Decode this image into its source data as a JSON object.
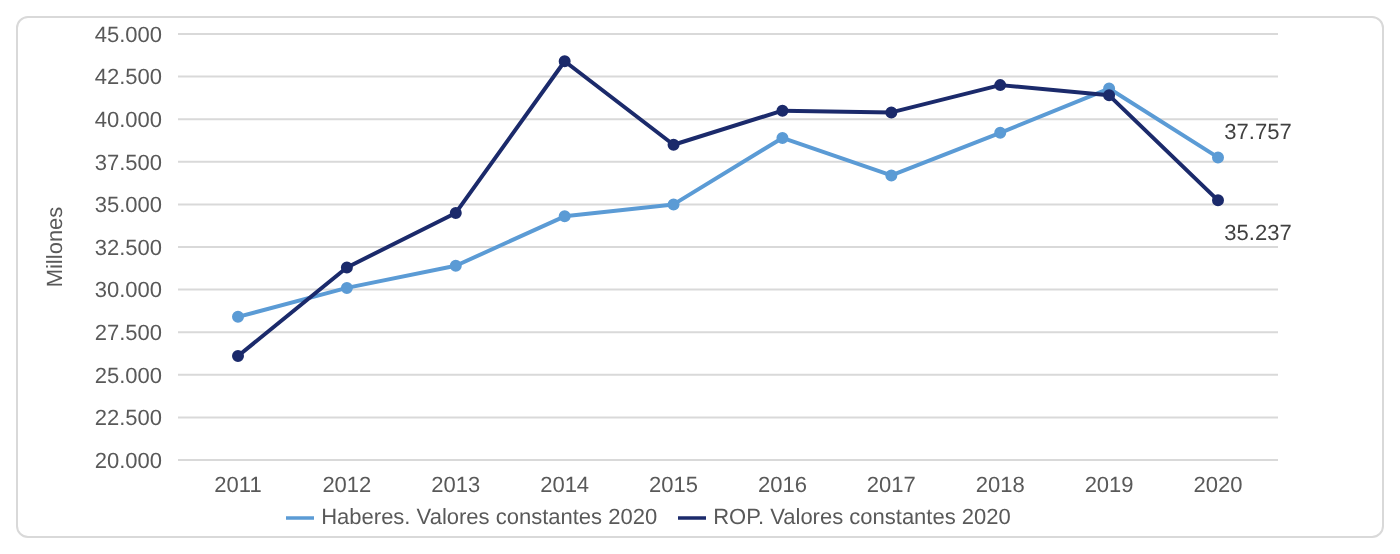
{
  "chart_data": {
    "type": "line",
    "ylabel": "Millones",
    "categories": [
      "2011",
      "2012",
      "2013",
      "2014",
      "2015",
      "2016",
      "2017",
      "2018",
      "2019",
      "2020"
    ],
    "series": [
      {
        "name": "Haberes. Valores constantes 2020",
        "color": "#5b9bd5",
        "values": [
          28400,
          30100,
          31400,
          34300,
          35000,
          38900,
          36700,
          39200,
          41800,
          37757
        ],
        "value_labels": [
          null,
          null,
          null,
          null,
          null,
          null,
          null,
          null,
          null,
          "37.757"
        ]
      },
      {
        "name": "ROP. Valores constantes 2020",
        "color": "#1b2a6b",
        "values": [
          26100,
          31300,
          34500,
          43400,
          38500,
          40500,
          40400,
          42000,
          41400,
          35237
        ],
        "value_labels": [
          null,
          null,
          null,
          null,
          null,
          null,
          null,
          null,
          null,
          "35.237"
        ]
      }
    ],
    "ylim": [
      20000,
      45000
    ],
    "yticks": [
      {
        "value": 20000,
        "label": "20.000"
      },
      {
        "value": 22500,
        "label": "22.500"
      },
      {
        "value": 25000,
        "label": "25.000"
      },
      {
        "value": 27500,
        "label": "27.500"
      },
      {
        "value": 30000,
        "label": "30.000"
      },
      {
        "value": 32500,
        "label": "32.500"
      },
      {
        "value": 35000,
        "label": "35.000"
      },
      {
        "value": 37500,
        "label": "37.500"
      },
      {
        "value": 40000,
        "label": "40.000"
      },
      {
        "value": 42500,
        "label": "42.500"
      },
      {
        "value": 45000,
        "label": "45.000"
      }
    ],
    "grid": "y",
    "legend": "bottom",
    "marker": "circle",
    "line_style": "solid"
  }
}
